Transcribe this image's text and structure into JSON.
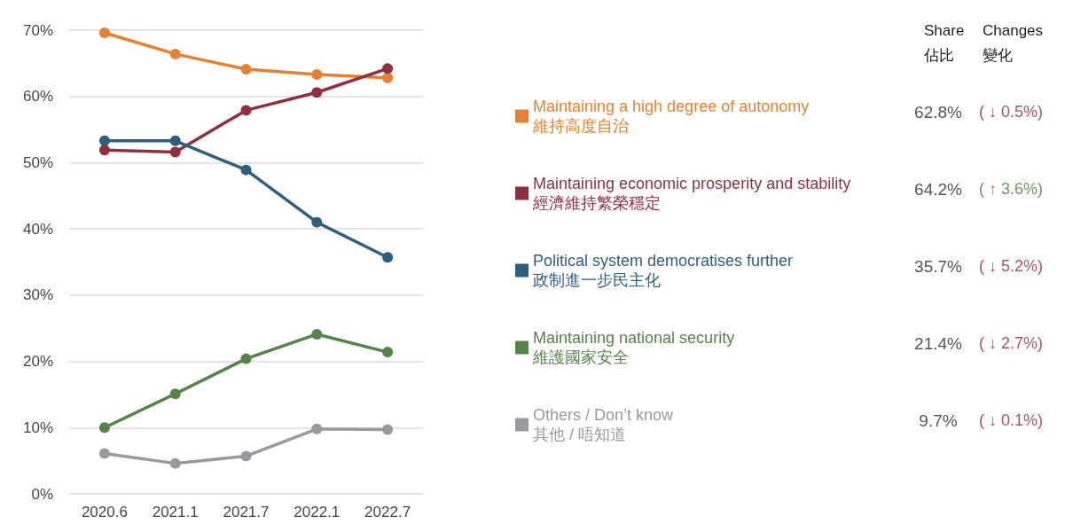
{
  "chart_data": {
    "type": "line",
    "categories": [
      "2020.6",
      "2021.1",
      "2021.7",
      "2022.1",
      "2022.7"
    ],
    "series": [
      {
        "name": "Maintaining a high degree of autonomy\n維持高度自治",
        "color": "#e8802f",
        "values": [
          69.6,
          66.4,
          64.1,
          63.3,
          62.8
        ]
      },
      {
        "name": "Maintaining economic prosperity and stability\n經濟維持繁榮穩定",
        "color": "#912f3f",
        "values": [
          51.9,
          51.6,
          57.9,
          60.6,
          64.2
        ]
      },
      {
        "name": "Political system democratises further\n政制進一步民主化",
        "color": "#2d5f7f",
        "values": [
          53.3,
          53.3,
          48.9,
          41.0,
          35.7
        ]
      },
      {
        "name": "Maintaining national security\n維護國家安全",
        "color": "#558447",
        "values": [
          10.0,
          15.1,
          20.4,
          24.1,
          21.4
        ]
      },
      {
        "name": "Others / Don’t know\n其他 / 唔知道",
        "color": "#9a9a9e",
        "values": [
          6.1,
          4.6,
          5.7,
          9.8,
          9.7
        ]
      }
    ],
    "ylim": [
      0,
      70
    ],
    "yticks": [
      {
        "value": 0,
        "label": "0%"
      },
      {
        "value": 10,
        "label": "10%"
      },
      {
        "value": 20,
        "label": "20%"
      },
      {
        "value": 30,
        "label": "30%"
      },
      {
        "value": 40,
        "label": "40%"
      },
      {
        "value": 50,
        "label": "50%"
      },
      {
        "value": 60,
        "label": "60%"
      },
      {
        "value": 70,
        "label": "70%"
      }
    ],
    "grid": "y",
    "legend": "right",
    "marker": "circle",
    "line_style": "solid",
    "annotations": [
      "Share\n佔比",
      "Changes\n變化",
      "62.8%",
      "64.2%",
      "35.7%",
      "21.4%",
      "9.7%",
      "( ↓ 0.5%)",
      "( ↑ 3.6%)",
      "( ↓ 5.2%)",
      "( ↓ 2.7%)",
      "( ↓ 0.1%)"
    ]
  }
}
